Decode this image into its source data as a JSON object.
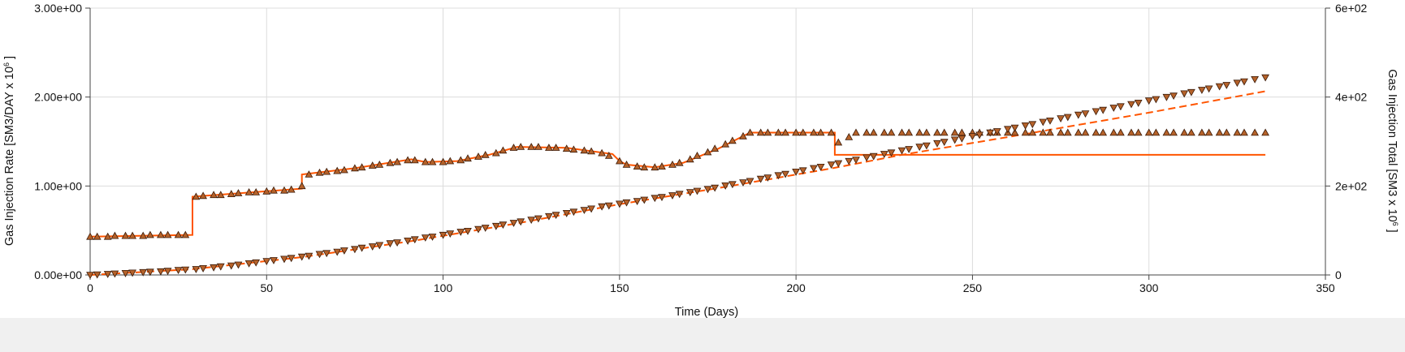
{
  "chart_data": {
    "type": "line",
    "xlabel": "Time (Days)",
    "ylabel_left_main": "Gas Injection Rate [SM3/DAY x 10",
    "ylabel_left_sup": "6",
    "ylabel_left_end": " ]",
    "ylabel_right_main": "Gas Injection Total [SM3 x 10",
    "ylabel_right_sup": "6",
    "ylabel_right_end": " ]",
    "xlim": [
      0,
      350
    ],
    "ylim_left": [
      0,
      3
    ],
    "ylim_right": [
      0,
      600
    ],
    "grid": true,
    "x_ticks": [
      {
        "value": 0,
        "label": "0"
      },
      {
        "value": 50,
        "label": "50"
      },
      {
        "value": 100,
        "label": "100"
      },
      {
        "value": 150,
        "label": "150"
      },
      {
        "value": 200,
        "label": "200"
      },
      {
        "value": 250,
        "label": "250"
      },
      {
        "value": 300,
        "label": "300"
      },
      {
        "value": 350,
        "label": "350"
      }
    ],
    "y_left_ticks": [
      {
        "value": 0,
        "label": "0.00e+00"
      },
      {
        "value": 1,
        "label": "1.00e+00"
      },
      {
        "value": 2,
        "label": "2.00e+00"
      },
      {
        "value": 3,
        "label": "3.00e+00"
      }
    ],
    "y_right_ticks": [
      {
        "value": 0,
        "label": "0"
      },
      {
        "value": 200,
        "label": "2e+02"
      },
      {
        "value": 400,
        "label": "4e+02"
      },
      {
        "value": 600,
        "label": "6e+02"
      }
    ],
    "colors": {
      "series_line": "#ff5500",
      "marker_fill": "#b5622a",
      "marker_stroke": "#3a1a08",
      "grid": "#dcdcdc",
      "axis": "#444444"
    },
    "series": [
      {
        "id": "rate_sim",
        "axis": "left",
        "style": "solid",
        "points": [
          [
            0,
            0.43
          ],
          [
            29,
            0.45
          ],
          [
            29,
            0.88
          ],
          [
            60,
            0.97
          ],
          [
            60,
            1.13
          ],
          [
            75,
            1.2
          ],
          [
            91,
            1.3
          ],
          [
            95,
            1.27
          ],
          [
            104,
            1.28
          ],
          [
            113,
            1.35
          ],
          [
            121,
            1.44
          ],
          [
            135,
            1.43
          ],
          [
            148,
            1.36
          ],
          [
            150,
            1.28
          ],
          [
            152,
            1.24
          ],
          [
            160,
            1.21
          ],
          [
            168,
            1.26
          ],
          [
            178,
            1.42
          ],
          [
            187,
            1.6
          ],
          [
            211,
            1.6
          ],
          [
            211,
            1.35
          ],
          [
            333,
            1.35
          ]
        ]
      },
      {
        "id": "total_sim",
        "axis": "right",
        "style": "dashed",
        "points": [
          [
            0,
            0
          ],
          [
            29,
            13
          ],
          [
            60,
            40
          ],
          [
            91,
            76
          ],
          [
            121,
            116
          ],
          [
            150,
            159
          ],
          [
            180,
            198
          ],
          [
            211,
            241
          ],
          [
            230,
            270
          ],
          [
            260,
            310
          ],
          [
            300,
            365
          ],
          [
            333,
            413
          ]
        ]
      },
      {
        "id": "rate_obs",
        "axis": "left",
        "marker": "triangle-up",
        "points": [
          [
            0,
            0.43
          ],
          [
            2,
            0.43
          ],
          [
            5,
            0.43
          ],
          [
            7,
            0.44
          ],
          [
            10,
            0.44
          ],
          [
            12,
            0.44
          ],
          [
            15,
            0.44
          ],
          [
            17,
            0.45
          ],
          [
            20,
            0.45
          ],
          [
            22,
            0.45
          ],
          [
            25,
            0.45
          ],
          [
            27,
            0.45
          ],
          [
            30,
            0.88
          ],
          [
            32,
            0.89
          ],
          [
            35,
            0.9
          ],
          [
            37,
            0.9
          ],
          [
            40,
            0.91
          ],
          [
            42,
            0.92
          ],
          [
            45,
            0.93
          ],
          [
            47,
            0.93
          ],
          [
            50,
            0.94
          ],
          [
            52,
            0.95
          ],
          [
            55,
            0.95
          ],
          [
            57,
            0.96
          ],
          [
            60,
            1.0
          ],
          [
            62,
            1.13
          ],
          [
            65,
            1.15
          ],
          [
            67,
            1.16
          ],
          [
            70,
            1.17
          ],
          [
            72,
            1.18
          ],
          [
            75,
            1.2
          ],
          [
            77,
            1.21
          ],
          [
            80,
            1.23
          ],
          [
            82,
            1.24
          ],
          [
            85,
            1.26
          ],
          [
            87,
            1.27
          ],
          [
            90,
            1.29
          ],
          [
            92,
            1.29
          ],
          [
            95,
            1.27
          ],
          [
            97,
            1.27
          ],
          [
            100,
            1.27
          ],
          [
            102,
            1.28
          ],
          [
            105,
            1.29
          ],
          [
            107,
            1.31
          ],
          [
            110,
            1.33
          ],
          [
            112,
            1.35
          ],
          [
            115,
            1.37
          ],
          [
            117,
            1.4
          ],
          [
            120,
            1.43
          ],
          [
            122,
            1.44
          ],
          [
            125,
            1.44
          ],
          [
            127,
            1.44
          ],
          [
            130,
            1.43
          ],
          [
            132,
            1.43
          ],
          [
            135,
            1.42
          ],
          [
            137,
            1.41
          ],
          [
            140,
            1.4
          ],
          [
            142,
            1.39
          ],
          [
            145,
            1.37
          ],
          [
            147,
            1.34
          ],
          [
            150,
            1.28
          ],
          [
            152,
            1.24
          ],
          [
            155,
            1.22
          ],
          [
            157,
            1.21
          ],
          [
            160,
            1.21
          ],
          [
            162,
            1.22
          ],
          [
            165,
            1.24
          ],
          [
            167,
            1.26
          ],
          [
            170,
            1.3
          ],
          [
            172,
            1.34
          ],
          [
            175,
            1.38
          ],
          [
            177,
            1.42
          ],
          [
            180,
            1.47
          ],
          [
            182,
            1.51
          ],
          [
            185,
            1.56
          ],
          [
            187,
            1.6
          ],
          [
            190,
            1.6
          ],
          [
            192,
            1.6
          ],
          [
            195,
            1.6
          ],
          [
            197,
            1.6
          ],
          [
            200,
            1.6
          ],
          [
            202,
            1.6
          ],
          [
            205,
            1.6
          ],
          [
            207,
            1.6
          ],
          [
            210,
            1.6
          ],
          [
            212,
            1.49
          ],
          [
            215,
            1.55
          ],
          [
            217,
            1.6
          ],
          [
            220,
            1.6
          ],
          [
            222,
            1.6
          ],
          [
            225,
            1.6
          ],
          [
            227,
            1.6
          ],
          [
            230,
            1.6
          ],
          [
            232,
            1.6
          ],
          [
            235,
            1.6
          ],
          [
            237,
            1.6
          ],
          [
            240,
            1.6
          ],
          [
            242,
            1.6
          ],
          [
            245,
            1.6
          ],
          [
            247,
            1.6
          ],
          [
            250,
            1.6
          ],
          [
            252,
            1.6
          ],
          [
            255,
            1.6
          ],
          [
            257,
            1.6
          ],
          [
            260,
            1.6
          ],
          [
            262,
            1.6
          ],
          [
            265,
            1.6
          ],
          [
            267,
            1.6
          ],
          [
            270,
            1.6
          ],
          [
            272,
            1.6
          ],
          [
            275,
            1.6
          ],
          [
            277,
            1.6
          ],
          [
            280,
            1.6
          ],
          [
            282,
            1.6
          ],
          [
            285,
            1.6
          ],
          [
            287,
            1.6
          ],
          [
            290,
            1.6
          ],
          [
            292,
            1.6
          ],
          [
            295,
            1.6
          ],
          [
            297,
            1.6
          ],
          [
            300,
            1.6
          ],
          [
            302,
            1.6
          ],
          [
            305,
            1.6
          ],
          [
            307,
            1.6
          ],
          [
            310,
            1.6
          ],
          [
            312,
            1.6
          ],
          [
            315,
            1.6
          ],
          [
            317,
            1.6
          ],
          [
            320,
            1.6
          ],
          [
            322,
            1.6
          ],
          [
            325,
            1.6
          ],
          [
            327,
            1.6
          ],
          [
            330,
            1.6
          ],
          [
            333,
            1.6
          ]
        ]
      },
      {
        "id": "total_obs",
        "axis": "right",
        "marker": "triangle-down",
        "points": [
          [
            0,
            0
          ],
          [
            2,
            1
          ],
          [
            5,
            2
          ],
          [
            7,
            3
          ],
          [
            10,
            4
          ],
          [
            12,
            5
          ],
          [
            15,
            6
          ],
          [
            17,
            7
          ],
          [
            20,
            8
          ],
          [
            22,
            9
          ],
          [
            25,
            11
          ],
          [
            27,
            12
          ],
          [
            30,
            13
          ],
          [
            32,
            15
          ],
          [
            35,
            17
          ],
          [
            37,
            19
          ],
          [
            40,
            21
          ],
          [
            42,
            23
          ],
          [
            45,
            26
          ],
          [
            47,
            28
          ],
          [
            50,
            31
          ],
          [
            52,
            33
          ],
          [
            55,
            36
          ],
          [
            57,
            38
          ],
          [
            60,
            41
          ],
          [
            62,
            43
          ],
          [
            65,
            47
          ],
          [
            67,
            49
          ],
          [
            70,
            52
          ],
          [
            72,
            55
          ],
          [
            75,
            58
          ],
          [
            77,
            61
          ],
          [
            80,
            64
          ],
          [
            82,
            67
          ],
          [
            85,
            71
          ],
          [
            87,
            73
          ],
          [
            90,
            77
          ],
          [
            92,
            80
          ],
          [
            95,
            84
          ],
          [
            97,
            86
          ],
          [
            100,
            90
          ],
          [
            102,
            93
          ],
          [
            105,
            97
          ],
          [
            107,
            99
          ],
          [
            110,
            103
          ],
          [
            112,
            106
          ],
          [
            115,
            110
          ],
          [
            117,
            113
          ],
          [
            120,
            117
          ],
          [
            122,
            120
          ],
          [
            125,
            124
          ],
          [
            127,
            127
          ],
          [
            130,
            132
          ],
          [
            132,
            135
          ],
          [
            135,
            139
          ],
          [
            137,
            142
          ],
          [
            140,
            146
          ],
          [
            142,
            149
          ],
          [
            145,
            154
          ],
          [
            147,
            156
          ],
          [
            150,
            160
          ],
          [
            152,
            163
          ],
          [
            155,
            166
          ],
          [
            157,
            169
          ],
          [
            160,
            173
          ],
          [
            162,
            175
          ],
          [
            165,
            179
          ],
          [
            167,
            182
          ],
          [
            170,
            186
          ],
          [
            172,
            189
          ],
          [
            175,
            193
          ],
          [
            177,
            196
          ],
          [
            180,
            201
          ],
          [
            182,
            204
          ],
          [
            185,
            208
          ],
          [
            187,
            211
          ],
          [
            190,
            216
          ],
          [
            192,
            219
          ],
          [
            195,
            224
          ],
          [
            197,
            227
          ],
          [
            200,
            232
          ],
          [
            202,
            235
          ],
          [
            205,
            240
          ],
          [
            207,
            243
          ],
          [
            210,
            248
          ],
          [
            212,
            251
          ],
          [
            215,
            256
          ],
          [
            217,
            259
          ],
          [
            220,
            264
          ],
          [
            222,
            267
          ],
          [
            225,
            272
          ],
          [
            227,
            275
          ],
          [
            230,
            280
          ],
          [
            232,
            283
          ],
          [
            235,
            288
          ],
          [
            237,
            291
          ],
          [
            240,
            296
          ],
          [
            242,
            299
          ],
          [
            245,
            304
          ],
          [
            247,
            307
          ],
          [
            250,
            312
          ],
          [
            252,
            315
          ],
          [
            255,
            320
          ],
          [
            257,
            323
          ],
          [
            260,
            328
          ],
          [
            262,
            331
          ],
          [
            265,
            336
          ],
          [
            267,
            339
          ],
          [
            270,
            344
          ],
          [
            272,
            347
          ],
          [
            275,
            352
          ],
          [
            277,
            355
          ],
          [
            280,
            360
          ],
          [
            282,
            363
          ],
          [
            285,
            368
          ],
          [
            287,
            371
          ],
          [
            290,
            376
          ],
          [
            292,
            379
          ],
          [
            295,
            384
          ],
          [
            297,
            387
          ],
          [
            300,
            392
          ],
          [
            302,
            395
          ],
          [
            305,
            400
          ],
          [
            307,
            403
          ],
          [
            310,
            408
          ],
          [
            312,
            411
          ],
          [
            315,
            416
          ],
          [
            317,
            419
          ],
          [
            320,
            424
          ],
          [
            322,
            427
          ],
          [
            325,
            432
          ],
          [
            327,
            435
          ],
          [
            330,
            440
          ],
          [
            333,
            444
          ]
        ]
      }
    ]
  }
}
